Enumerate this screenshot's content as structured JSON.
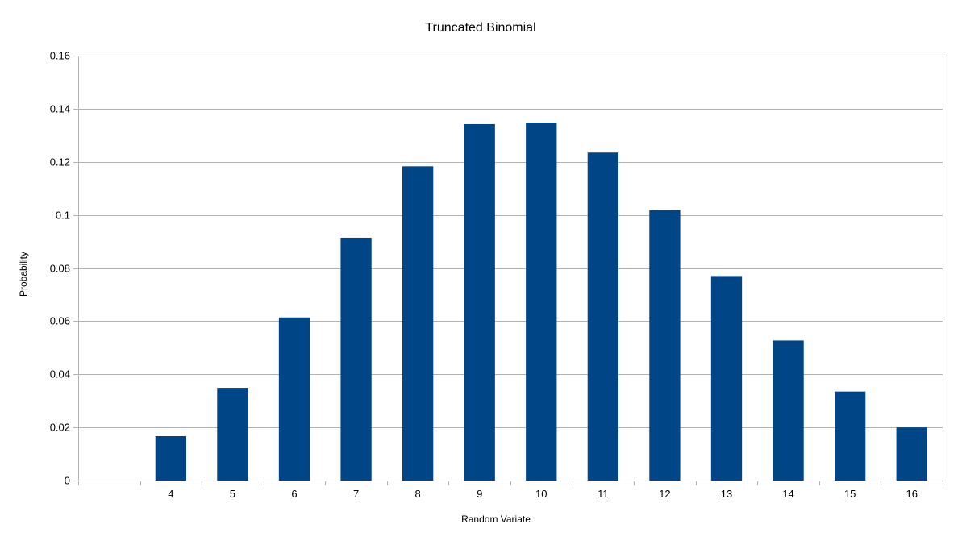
{
  "chart_data": {
    "type": "bar",
    "title": "Truncated Binomial",
    "xlabel": "Random Variate",
    "ylabel": "Probability",
    "categories": [
      "",
      "4",
      "5",
      "6",
      "7",
      "8",
      "9",
      "10",
      "11",
      "12",
      "13",
      "14",
      "15",
      "16"
    ],
    "series": [
      {
        "values": [
          null,
          0.0167,
          0.0349,
          0.0614,
          0.0914,
          0.1183,
          0.1342,
          0.1348,
          0.1235,
          0.1018,
          0.077,
          0.0527,
          0.0335,
          0.02
        ]
      }
    ],
    "ylim": [
      0,
      0.16
    ],
    "yticks": [
      "0",
      "0.02",
      "0.04",
      "0.06",
      "0.08",
      "0.1",
      "0.12",
      "0.14",
      "0.16"
    ],
    "grid": true,
    "legend": "none",
    "colors": {
      "bar": "#004586",
      "grid": "#b3b3b3",
      "axis": "#b3b3b3"
    }
  }
}
